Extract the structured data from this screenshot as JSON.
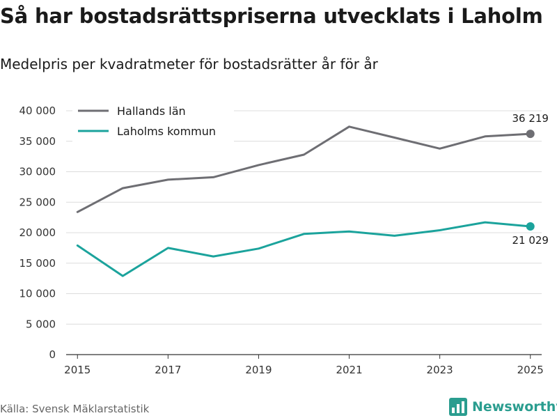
{
  "title": "Så har bostadsrättspriserna utvecklats i Laholm",
  "subtitle": "Medelpris per kvadratmeter för bostadsrätter år för år",
  "source": "Källa: Svensk Mäklarstatistik",
  "brand": {
    "name": "Newsworthy",
    "icon": "newsworthy-logo-icon",
    "color": "#2a9d8f"
  },
  "chart_data": {
    "type": "line",
    "x": [
      2015,
      2016,
      2017,
      2018,
      2019,
      2020,
      2021,
      2022,
      2023,
      2024,
      2025
    ],
    "x_tick_values": [
      2015,
      2017,
      2019,
      2021,
      2023,
      2025
    ],
    "x_tick_labels": [
      "2015",
      "2017",
      "2019",
      "2021",
      "2023",
      "2025"
    ],
    "xlim": [
      2014.75,
      2025.25
    ],
    "ylim": [
      0,
      40000
    ],
    "y_tick_values": [
      0,
      5000,
      10000,
      15000,
      20000,
      25000,
      30000,
      35000,
      40000
    ],
    "y_tick_labels": [
      "0",
      "5 000",
      "10 000",
      "15 000",
      "20 000",
      "25 000",
      "30 000",
      "35 000",
      "40 000"
    ],
    "grid": true,
    "legend_position": "top-left",
    "series": [
      {
        "name": "Hallands län",
        "color": "#6e6e73",
        "values": [
          23400,
          27300,
          28700,
          29100,
          31100,
          32800,
          37400,
          35600,
          33800,
          35800,
          36219
        ],
        "end_label": "36 219"
      },
      {
        "name": "Laholms kommun",
        "color": "#1ba39c",
        "values": [
          17900,
          12900,
          17500,
          16100,
          17400,
          19800,
          20200,
          19500,
          20400,
          21700,
          21029
        ],
        "end_label": "21 029"
      }
    ]
  }
}
